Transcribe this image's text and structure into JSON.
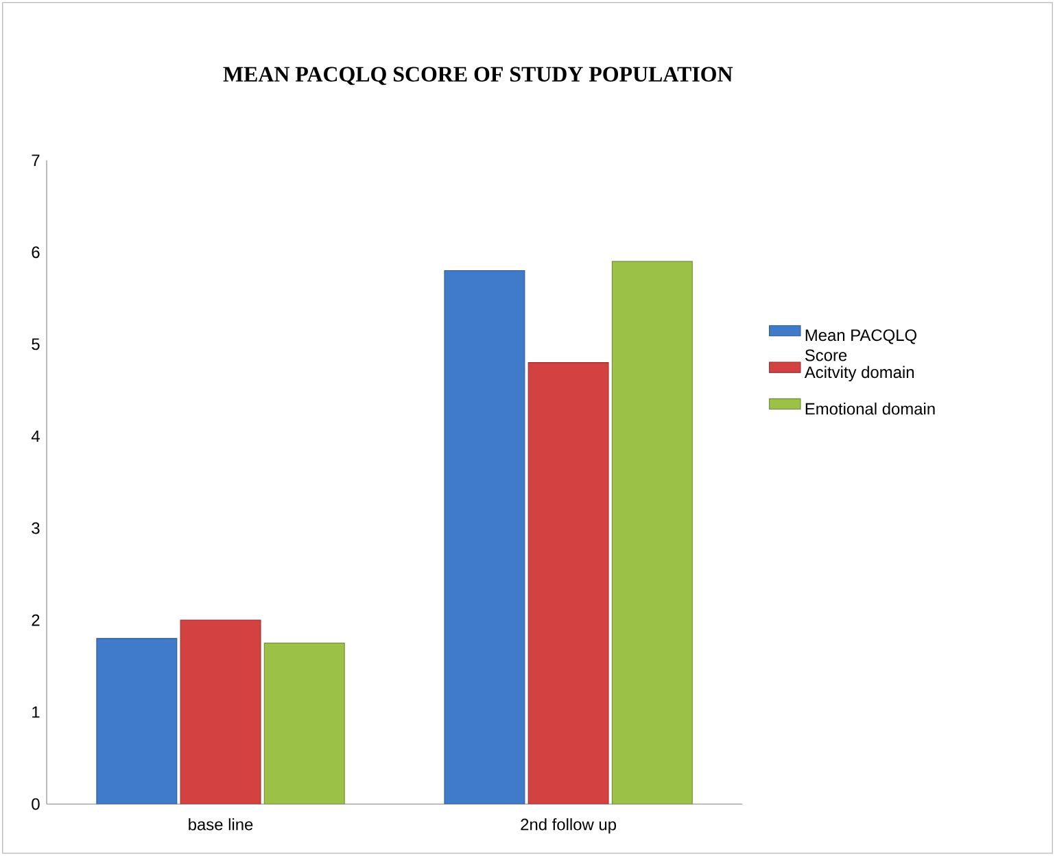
{
  "chart_data": {
    "type": "bar",
    "title": "MEAN PACQLQ SCORE OF STUDY POPULATION",
    "categories": [
      "base line",
      "2nd follow up"
    ],
    "series": [
      {
        "name": "Mean PACQLQ Score",
        "color": "#3f7bc9",
        "values": [
          1.8,
          5.8
        ]
      },
      {
        "name": "Acitvity domain",
        "color": "#d34240",
        "values": [
          2.0,
          4.8
        ]
      },
      {
        "name": "Emotional domain",
        "color": "#9bc246",
        "values": [
          1.75,
          5.9
        ]
      }
    ],
    "ylim": [
      0,
      7
    ],
    "yticks": [
      0,
      1,
      2,
      3,
      4,
      5,
      6,
      7
    ],
    "grid": false,
    "legend": "right"
  }
}
